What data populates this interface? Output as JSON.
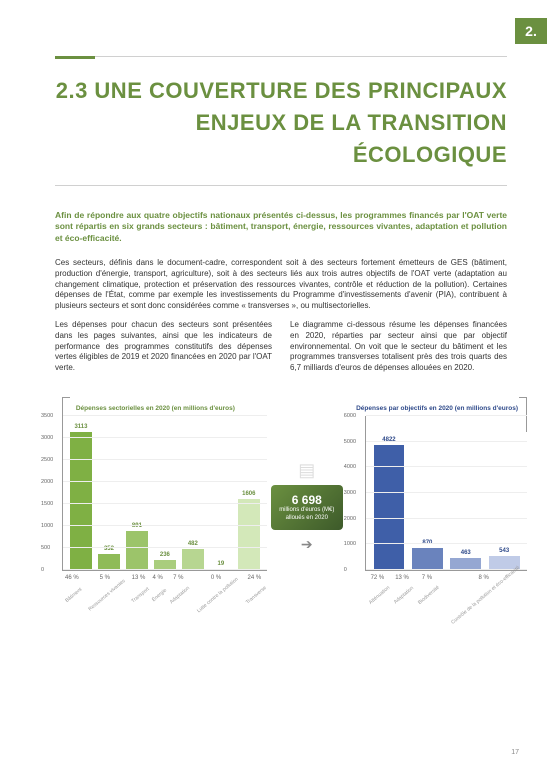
{
  "section_number": "2.",
  "title": "2.3 UNE COUVERTURE DES PRINCIPAUX ENJEUX DE LA TRANSITION ÉCOLOGIQUE",
  "intro": "Afin de répondre aux quatre objectifs nationaux présentés ci-dessus, les programmes financés par l'OAT verte sont répartis en six grands secteurs : bâtiment, transport, énergie, ressources vivantes, adaptation et pollution et éco-efficacité.",
  "para1": "Ces secteurs, définis dans le document-cadre, correspondent soit à des secteurs fortement émetteurs de GES (bâtiment, production d'énergie, transport, agriculture), soit à des secteurs liés aux trois autres objectifs de l'OAT verte (adaptation au changement climatique, protection et préservation des ressources vivantes, contrôle et réduction de la pollution). Certaines dépenses de l'État, comme par exemple les investissements du Programme d'investissements d'avenir (PIA), contribuent à plusieurs secteurs et sont donc considérées comme « transverses », ou multisectorielles.",
  "col_left": "Les dépenses pour chacun des secteurs sont présentées dans les pages suivantes, ainsi que les indicateurs de performance des programmes constitutifs des dépenses vertes éligibles de 2019 et 2020 financées en 2020 par l'OAT verte.",
  "col_right": "Le diagramme ci-dessous résume les dépenses financées en 2020, réparties par secteur ainsi que par objectif environnemental. On voit que le secteur du bâtiment et les programmes transverses totalisent près des trois quarts des 6,7 milliards d'euros de dépenses allouées en 2020.",
  "total": {
    "value": "6 698",
    "unit": "millions d'euros (M€) alloués en 2020"
  },
  "chart_left": {
    "title": "Dépenses sectorielles en 2020 (en millions d'euros)",
    "ymax": 3500,
    "yticks": [
      0,
      500,
      1000,
      1500,
      2000,
      2500,
      3000,
      3500
    ],
    "bars": [
      {
        "label": "Bâtiment",
        "value": 3113,
        "pct": "46 %",
        "color": "#7fb044"
      },
      {
        "label": "Ressources vivantes",
        "value": 352,
        "pct": "5 %",
        "color": "#8fbb58"
      },
      {
        "label": "Transport",
        "value": 891,
        "pct": "13 %",
        "color": "#9cc46a"
      },
      {
        "label": "Énergie",
        "value": 236,
        "pct": "4 %",
        "color": "#a9cd7d"
      },
      {
        "label": "Adaptation",
        "value": 482,
        "pct": "7 %",
        "color": "#b7d691"
      },
      {
        "label": "Lutte contre la pollution",
        "value": 19,
        "pct": "0 %",
        "color": "#c5dfa5"
      },
      {
        "label": "Transverse",
        "value": 1606,
        "pct": "24 %",
        "color": "#d3e8b9"
      }
    ]
  },
  "chart_right": {
    "title": "Dépenses par objectifs en 2020 (en millions d'euros)",
    "ymax": 6000,
    "yticks": [
      0,
      1000,
      2000,
      3000,
      4000,
      5000,
      6000
    ],
    "bars": [
      {
        "label": "Atténuation",
        "value": 4822,
        "pct": "72 %",
        "color": "#3f5fa8"
      },
      {
        "label": "Adaptation",
        "value": 870,
        "pct": "13 %",
        "color": "#6a83bd"
      },
      {
        "label": "Biodiversité",
        "value": 463,
        "pct": "7 %",
        "color": "#95a7d2"
      },
      {
        "label": "Contrôle de la pollution et éco-efficacité",
        "value": 543,
        "pct": "8 %",
        "color": "#c0cbe7"
      }
    ]
  },
  "page_number": "17"
}
